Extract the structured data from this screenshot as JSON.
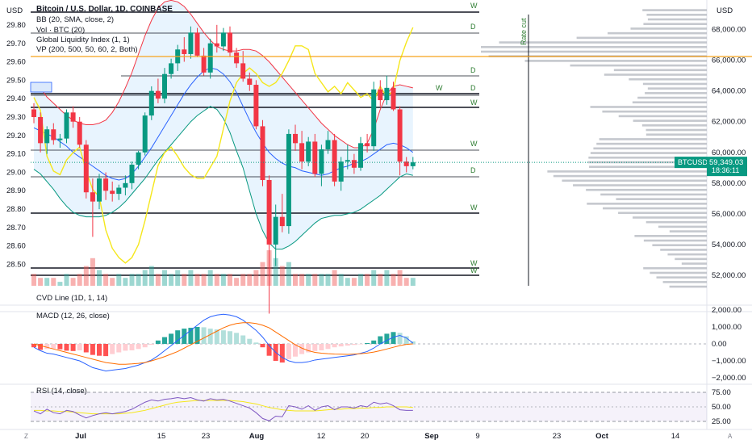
{
  "chart_data": [
    {
      "type": "candlestick",
      "title": "Bitcoin / U.S. Dollar, 1D, COINBASE",
      "indicators": [
        "BB (20, SMA, close, 2)",
        "Vol · BTC (20)",
        "Global Liquidity Index (1, 1)",
        "VP (200, 500, 50, 60, 2, Both)"
      ],
      "left_axis": {
        "unit": "USD",
        "ticks": [
          "29.80",
          "29.70",
          "29.60",
          "29.50",
          "29.40",
          "29.30",
          "29.20",
          "29.10",
          "29.00",
          "28.90",
          "28.80",
          "28.70",
          "28.60",
          "28.50"
        ]
      },
      "right_axis": {
        "unit": "USD",
        "ticks": [
          "68,000.00",
          "66,000.00",
          "64,000.00",
          "62,000.00",
          "60,000.00",
          "58,000.00",
          "56,000.00",
          "54,000.00",
          "52,000.00"
        ],
        "ylim": [
          51000,
          69500
        ]
      },
      "x_axis": {
        "ticks": [
          "Jul",
          "15",
          "23",
          "Aug",
          "12",
          "20",
          "Sep",
          "9",
          "23",
          "Oct",
          "14"
        ]
      },
      "last_price": {
        "symbol": "BTCUSD",
        "price": "59,349.03",
        "countdown": "18:36:11",
        "value": 59349
      },
      "annotation": "Rate cut",
      "level_tags": [
        "W",
        "D",
        "D",
        "D",
        "W",
        "W",
        "D",
        "W",
        "W",
        "W",
        "W"
      ],
      "ohlc": [
        [
          62800,
          63200,
          61900,
          62300
        ],
        [
          62300,
          62600,
          60000,
          60600
        ],
        [
          60600,
          61700,
          59900,
          61500
        ],
        [
          61500,
          61900,
          60500,
          60800
        ],
        [
          60800,
          61200,
          60300,
          60900
        ],
        [
          60900,
          62800,
          60600,
          62600
        ],
        [
          62600,
          63000,
          61600,
          62000
        ],
        [
          62000,
          62300,
          60300,
          60500
        ],
        [
          60500,
          60800,
          57000,
          57400
        ],
        [
          57400,
          58300,
          54500,
          56800
        ],
        [
          56800,
          58600,
          56300,
          58300
        ],
        [
          58300,
          58700,
          56900,
          57500
        ],
        [
          57500,
          58100,
          56800,
          57300
        ],
        [
          57300,
          57900,
          56900,
          57700
        ],
        [
          57700,
          58500,
          57200,
          58000
        ],
        [
          58000,
          59400,
          57600,
          59200
        ],
        [
          59200,
          60100,
          58900,
          60000
        ],
        [
          60000,
          62600,
          59800,
          62400
        ],
        [
          62400,
          64300,
          62100,
          64000
        ],
        [
          64000,
          64800,
          63200,
          63500
        ],
        [
          63500,
          65500,
          63200,
          65100
        ],
        [
          65100,
          66100,
          64800,
          65800
        ],
        [
          65800,
          67000,
          65300,
          66700
        ],
        [
          66700,
          67500,
          65900,
          66400
        ],
        [
          66400,
          68200,
          66100,
          67800
        ],
        [
          67800,
          68100,
          66200,
          66300
        ],
        [
          66300,
          66800,
          65000,
          65200
        ],
        [
          65200,
          67400,
          64800,
          67100
        ],
        [
          67100,
          68300,
          66500,
          66900
        ],
        [
          66900,
          68100,
          66600,
          67800
        ],
        [
          67800,
          68200,
          66200,
          66500
        ],
        [
          66500,
          66800,
          65500,
          65800
        ],
        [
          65800,
          66600,
          64600,
          64800
        ],
        [
          64800,
          65200,
          64000,
          64400
        ],
        [
          64400,
          64700,
          61500,
          61700
        ],
        [
          61700,
          62100,
          57800,
          58200
        ],
        [
          58200,
          58500,
          49500,
          54000
        ],
        [
          54000,
          56600,
          52600,
          55800
        ],
        [
          55800,
          57300,
          54800,
          55200
        ],
        [
          55200,
          61500,
          54700,
          61200
        ],
        [
          61200,
          61800,
          60100,
          60600
        ],
        [
          60600,
          61400,
          58900,
          59400
        ],
        [
          59400,
          61000,
          59100,
          60700
        ],
        [
          60700,
          61200,
          58400,
          58600
        ],
        [
          58600,
          60500,
          57800,
          60200
        ],
        [
          60200,
          61400,
          59900,
          60800
        ],
        [
          60800,
          61200,
          57800,
          58100
        ],
        [
          58100,
          59700,
          57500,
          59400
        ],
        [
          59400,
          60500,
          58900,
          59500
        ],
        [
          59500,
          59900,
          58600,
          59000
        ],
        [
          59000,
          61000,
          58800,
          60600
        ],
        [
          60600,
          61200,
          60000,
          60400
        ],
        [
          60400,
          64600,
          60100,
          64100
        ],
        [
          64100,
          64700,
          63000,
          63400
        ],
        [
          63400,
          65000,
          63100,
          64200
        ],
        [
          64200,
          64600,
          62700,
          62800
        ],
        [
          62800,
          63000,
          58500,
          59400
        ],
        [
          59400,
          59700,
          58700,
          59100
        ],
        [
          59100,
          59700,
          58900,
          59349
        ]
      ],
      "volume": [
        3,
        2,
        2,
        2,
        1,
        3,
        2,
        3,
        5,
        7,
        4,
        3,
        2,
        3,
        2,
        3,
        3,
        4,
        5,
        3,
        4,
        3,
        4,
        3,
        4,
        3,
        3,
        4,
        3,
        3,
        3,
        2,
        3,
        3,
        4,
        6,
        9,
        7,
        5,
        6,
        3,
        3,
        3,
        3,
        3,
        3,
        4,
        3,
        2,
        2,
        3,
        3,
        4,
        3,
        4,
        3,
        4,
        2,
        2
      ],
      "bb": {
        "upper": [
          64400,
          64200,
          63600,
          63200,
          62800,
          62400,
          62100,
          61900,
          61800,
          61800,
          61900,
          62100,
          62600,
          63300,
          64200,
          65200,
          66400,
          67600,
          68600,
          69400,
          69800,
          69900,
          69800,
          69500,
          69000,
          68400,
          67800,
          67300,
          66900,
          66700,
          66600,
          66600,
          66700,
          66700,
          66600,
          66300,
          65900,
          65400,
          64900,
          64400,
          63900,
          63400,
          62900,
          62400,
          61900,
          61500,
          61100,
          60800,
          60500,
          60300,
          60300,
          60600,
          61500,
          62800,
          63800,
          64300,
          64400,
          64300,
          64200
        ],
        "basis": [
          61600,
          61400,
          61200,
          61000,
          60700,
          60400,
          60000,
          59700,
          59400,
          59100,
          58800,
          58500,
          58300,
          58200,
          58300,
          58600,
          59100,
          59700,
          60300,
          61000,
          61700,
          62400,
          63100,
          63800,
          64400,
          64900,
          65300,
          65500,
          65400,
          65100,
          64600,
          63900,
          63000,
          62100,
          61300,
          60600,
          60000,
          59600,
          59300,
          59100,
          59000,
          58800,
          58700,
          58600,
          58500,
          58600,
          58800,
          59000,
          59100,
          59300,
          59400,
          59600,
          59900,
          60200,
          60500,
          60600,
          60500,
          60300,
          60000
        ],
        "lower": [
          58900,
          58600,
          58100,
          57600,
          57000,
          56500,
          56100,
          55900,
          55800,
          55800,
          55800,
          55900,
          56100,
          56400,
          56800,
          57300,
          57800,
          58300,
          58900,
          59500,
          60000,
          60500,
          61000,
          61500,
          62000,
          62400,
          62700,
          63000,
          62800,
          62200,
          61300,
          60100,
          59000,
          57500,
          56000,
          54900,
          54100,
          53700,
          53700,
          53900,
          54200,
          54600,
          55000,
          55400,
          55700,
          55800,
          55900,
          55900,
          56000,
          56100,
          56300,
          56600,
          56900,
          57200,
          57600,
          58000,
          58400,
          58600,
          58500
        ]
      },
      "liquidity_index": [
        29.42,
        29.35,
        29.1,
        29.02,
        29.0,
        29.08,
        29.12,
        29.15,
        29.02,
        28.92,
        28.88,
        28.7,
        28.6,
        28.55,
        28.52,
        28.55,
        28.62,
        28.75,
        28.9,
        29.05,
        29.12,
        29.15,
        29.1,
        29.04,
        29.0,
        28.98,
        28.98,
        29.04,
        29.1,
        29.25,
        29.4,
        29.5,
        29.55,
        29.58,
        29.55,
        29.5,
        29.48,
        29.5,
        29.55,
        29.62,
        29.7,
        29.7,
        29.68,
        29.55,
        29.5,
        29.45,
        29.48,
        29.44,
        29.5,
        29.46,
        29.42,
        29.44,
        29.4,
        29.48,
        29.42,
        29.46,
        29.62,
        29.72,
        29.8
      ]
    },
    {
      "type": "area",
      "title": "CVD Line (1D, 1, 14)"
    },
    {
      "type": "bar",
      "title": "MACD (12, 26, close)",
      "y_ticks": [
        "2,000.00",
        "1,000.00",
        "0.00",
        "−1,000.00",
        "−2,000.00"
      ],
      "ylim": [
        -2000,
        2000
      ],
      "histogram": [
        -200,
        -350,
        -300,
        -280,
        -320,
        -400,
        -420,
        -380,
        -500,
        -650,
        -700,
        -720,
        -600,
        -500,
        -400,
        -380,
        -300,
        -200,
        -50,
        200,
        400,
        600,
        800,
        900,
        950,
        1000,
        980,
        900,
        850,
        800,
        750,
        650,
        500,
        300,
        80,
        -200,
        -700,
        -1000,
        -1100,
        -900,
        -750,
        -600,
        -500,
        -420,
        -380,
        -300,
        -200,
        -150,
        -100,
        -60,
        -20,
        50,
        200,
        450,
        600,
        700,
        650,
        450,
        150
      ],
      "macd_line": [
        -200,
        -400,
        -550,
        -600,
        -700,
        -800,
        -900,
        -1000,
        -1200,
        -1400,
        -1500,
        -1600,
        -1550,
        -1500,
        -1450,
        -1350,
        -1250,
        -1100,
        -950,
        -700,
        -400,
        -100,
        200,
        500,
        800,
        1100,
        1400,
        1600,
        1700,
        1750,
        1700,
        1600,
        1400,
        1100,
        800,
        400,
        -100,
        -500,
        -800,
        -1000,
        -1100,
        -1100,
        -1050,
        -950,
        -900,
        -850,
        -800,
        -750,
        -700,
        -650,
        -550,
        -450,
        -250,
        0,
        200,
        400,
        500,
        350,
        50
      ],
      "signal_line": [
        0,
        -100,
        -200,
        -300,
        -400,
        -500,
        -600,
        -700,
        -800,
        -900,
        -1000,
        -1100,
        -1150,
        -1200,
        -1200,
        -1180,
        -1150,
        -1100,
        -1000,
        -880,
        -750,
        -600,
        -450,
        -250,
        -50,
        150,
        350,
        550,
        750,
        950,
        1100,
        1200,
        1250,
        1250,
        1200,
        1100,
        950,
        700,
        450,
        200,
        -50,
        -250,
        -400,
        -500,
        -550,
        -580,
        -600,
        -610,
        -620,
        -600,
        -580,
        -540,
        -480,
        -400,
        -300,
        -200,
        -100,
        -30,
        0
      ]
    },
    {
      "type": "line",
      "title": "RSI (14, close)",
      "y_ticks": [
        "75.00",
        "50.00",
        "25.00"
      ],
      "ylim": [
        15,
        80
      ],
      "rsi": [
        43,
        38,
        46,
        40,
        38,
        44,
        42,
        36,
        31,
        35,
        38,
        40,
        38,
        40,
        42,
        46,
        52,
        58,
        62,
        60,
        63,
        64,
        66,
        64,
        66,
        62,
        60,
        64,
        62,
        63,
        60,
        56,
        52,
        48,
        40,
        30,
        26,
        34,
        33,
        52,
        50,
        46,
        52,
        44,
        50,
        52,
        45,
        50,
        50,
        48,
        52,
        50,
        58,
        55,
        57,
        52,
        45,
        44,
        44
      ],
      "rsi_ma": [
        44,
        44,
        43,
        43,
        42,
        42,
        41,
        40,
        39,
        38,
        38,
        38,
        38,
        38,
        39,
        40,
        42,
        44,
        47,
        50,
        53,
        56,
        58,
        59,
        60,
        61,
        61,
        61,
        61,
        61,
        61,
        60,
        59,
        57,
        55,
        52,
        49,
        47,
        45,
        44,
        43,
        43,
        43,
        43,
        44,
        45,
        46,
        46,
        47,
        47,
        48,
        48,
        49,
        49,
        50,
        50,
        50,
        50,
        49
      ]
    }
  ]
}
